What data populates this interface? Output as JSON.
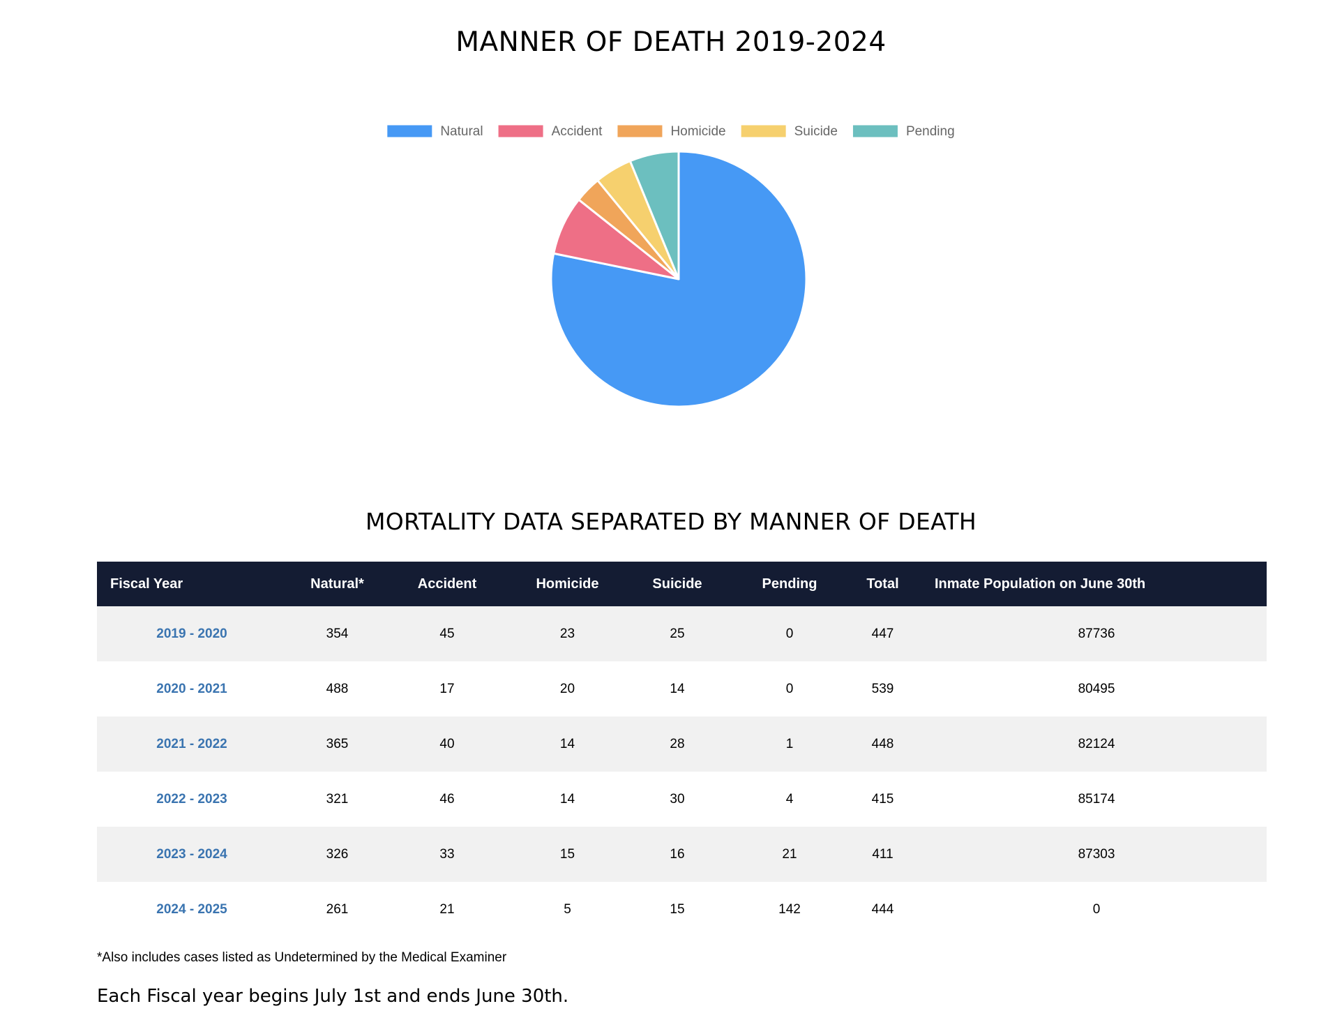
{
  "chart_data": {
    "type": "pie",
    "title": "MANNER OF DEATH 2019-2024",
    "legend_position": "top",
    "categories": [
      "Natural",
      "Accident",
      "Homicide",
      "Suicide",
      "Pending"
    ],
    "values": [
      2115,
      202,
      91,
      128,
      168
    ],
    "colors": [
      "#4699f5",
      "#ee6f86",
      "#f0a55a",
      "#f6d06e",
      "#6cbfbf"
    ]
  },
  "table": {
    "title": "MORTALITY DATA SEPARATED BY MANNER OF DEATH",
    "headers": [
      "Fiscal Year",
      "Natural*",
      "Accident",
      "Homicide",
      "Suicide",
      "Pending",
      "Total",
      "Inmate Population on June 30th"
    ],
    "rows": [
      [
        "2019 - 2020",
        "354",
        "45",
        "23",
        "25",
        "0",
        "447",
        "87736"
      ],
      [
        "2020 - 2021",
        "488",
        "17",
        "20",
        "14",
        "0",
        "539",
        "80495"
      ],
      [
        "2021 - 2022",
        "365",
        "40",
        "14",
        "28",
        "1",
        "448",
        "82124"
      ],
      [
        "2022 - 2023",
        "321",
        "46",
        "14",
        "30",
        "4",
        "415",
        "85174"
      ],
      [
        "2023 - 2024",
        "326",
        "33",
        "15",
        "16",
        "21",
        "411",
        "87303"
      ],
      [
        "2024 - 2025",
        "261",
        "21",
        "5",
        "15",
        "142",
        "444",
        "0"
      ]
    ]
  },
  "footnote": "*Also includes cases listed as Undetermined by the Medical Examiner",
  "fiscal_note": "Each Fiscal year begins July 1st and ends June 30th."
}
